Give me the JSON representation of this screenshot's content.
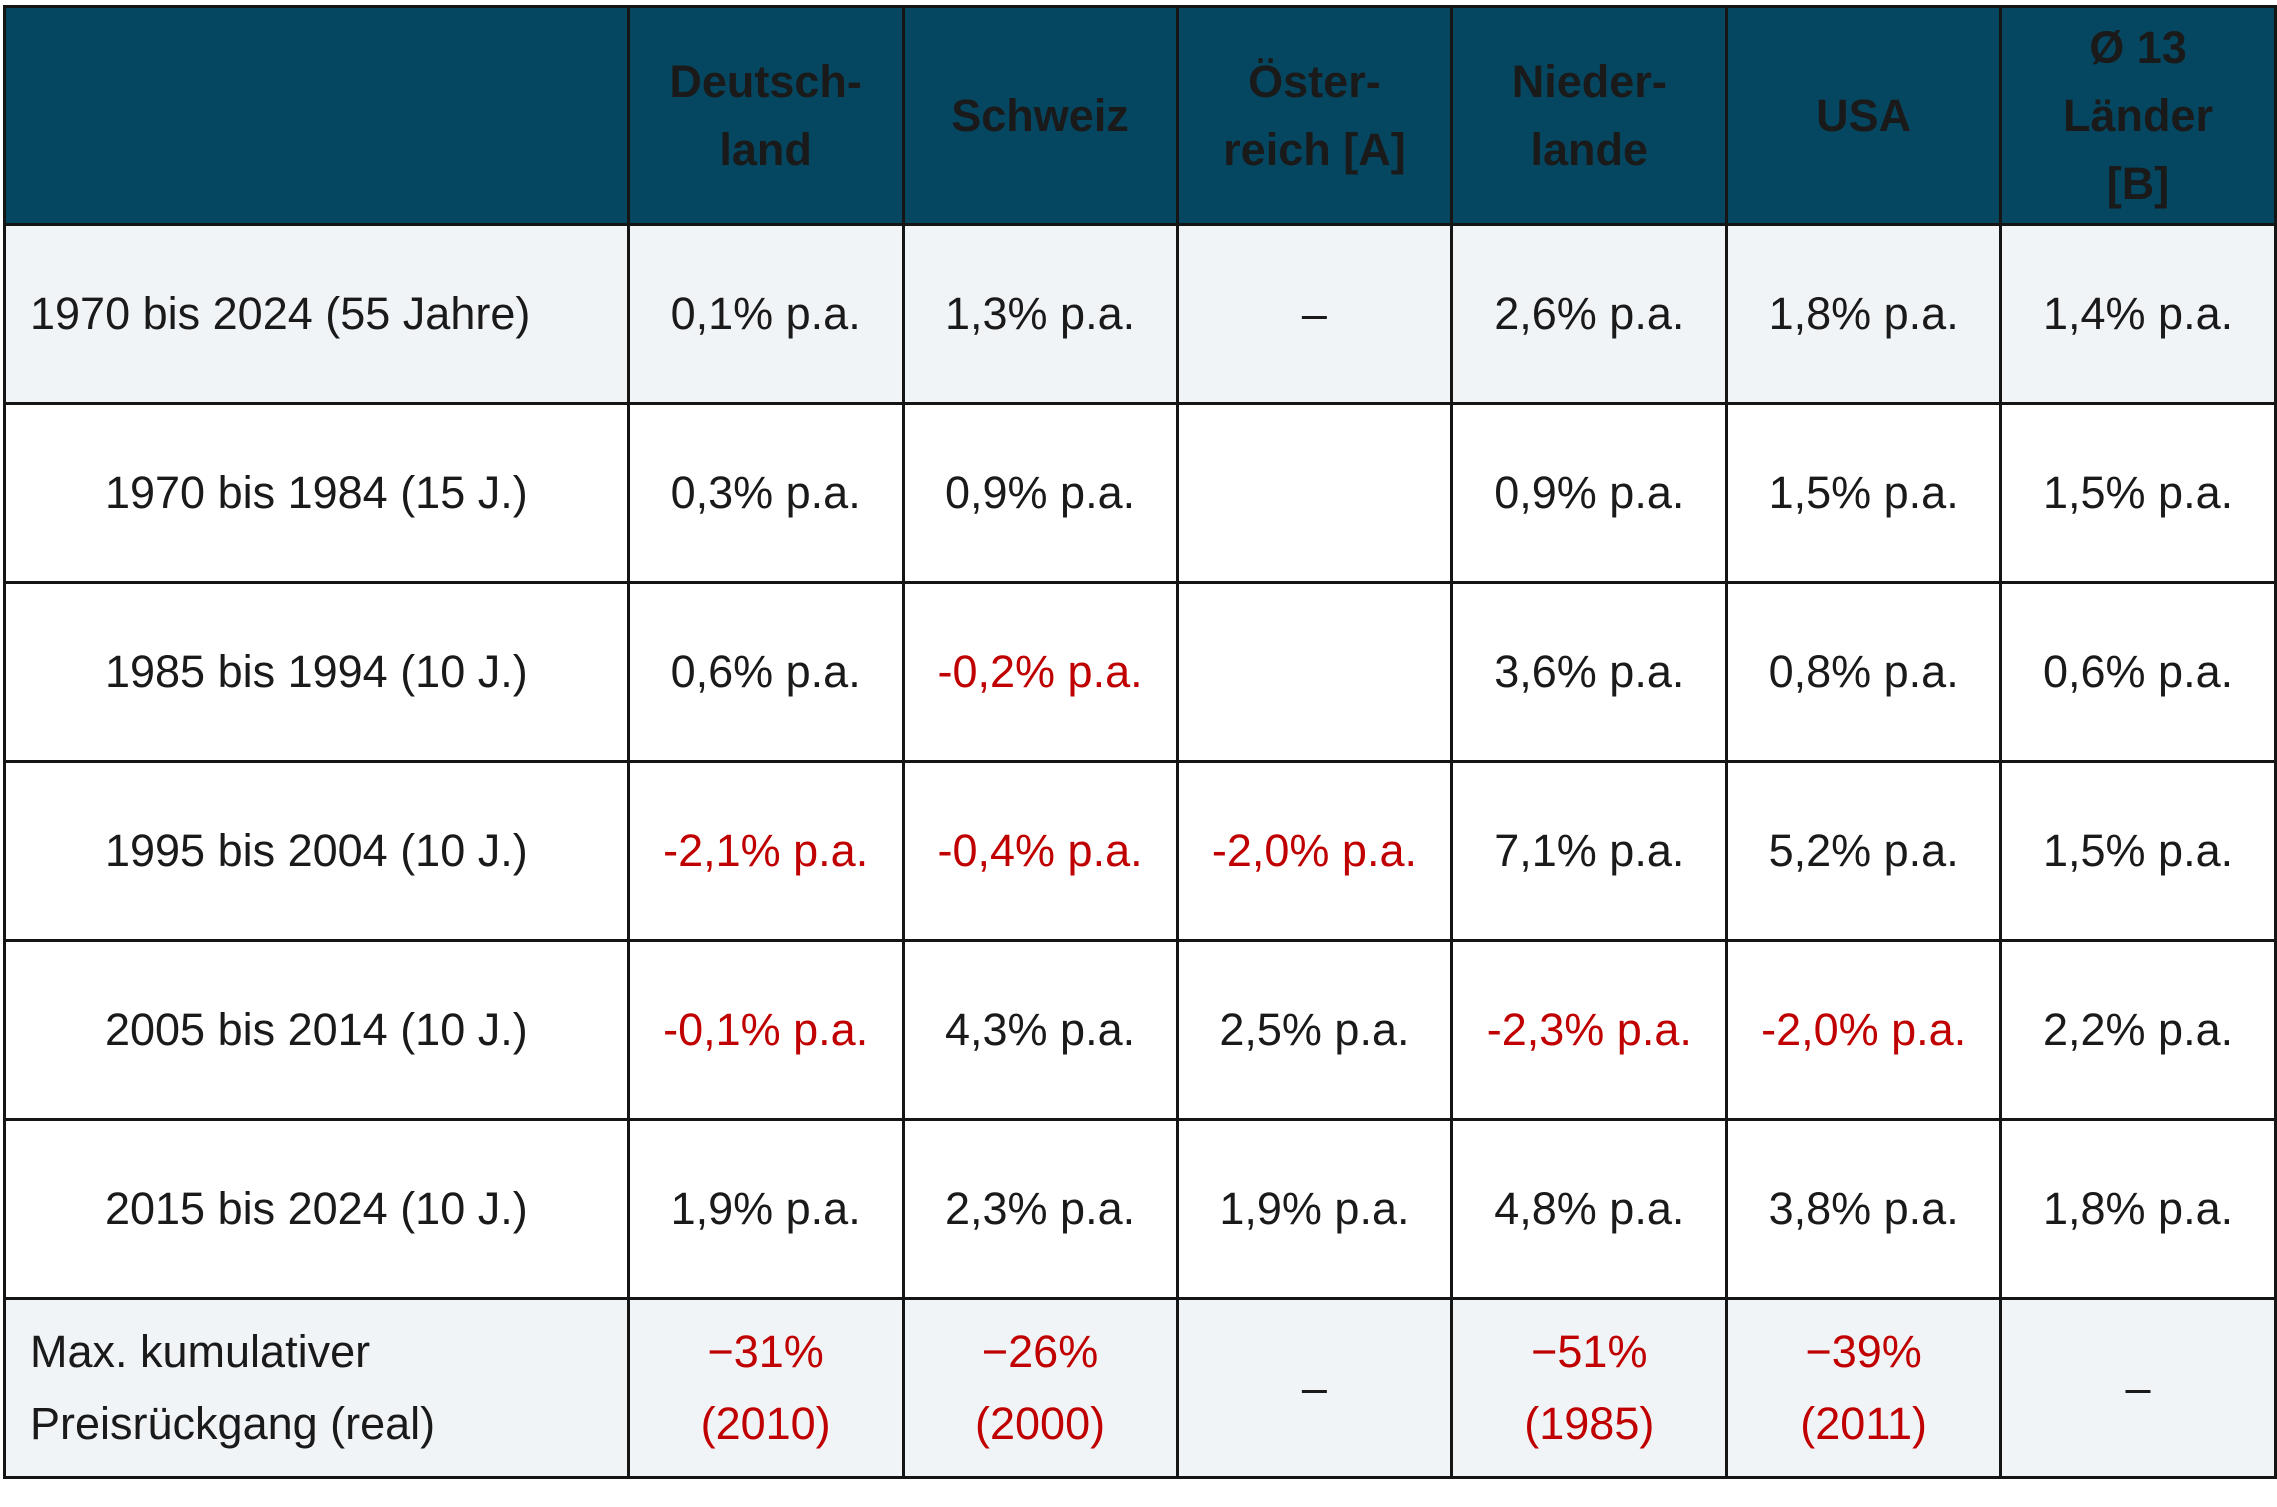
{
  "table": {
    "headers": [
      {
        "lines": []
      },
      {
        "lines": [
          "Deutsch-",
          "land"
        ]
      },
      {
        "lines": [
          "Schweiz"
        ]
      },
      {
        "lines": [
          "Öster-",
          "reich [A]"
        ]
      },
      {
        "lines": [
          "Nieder-",
          "lande"
        ]
      },
      {
        "lines": [
          "USA"
        ]
      },
      {
        "lines": [
          "Ø 13",
          "Länder",
          "[B]"
        ]
      }
    ],
    "rows": [
      {
        "label": [
          "1970 bis 2024 (55 Jahre)"
        ],
        "align": "left",
        "shaded": true,
        "cells": [
          {
            "text": [
              "0,1% p.a."
            ],
            "neg": false
          },
          {
            "text": [
              "1,3% p.a."
            ],
            "neg": false
          },
          {
            "text": [
              "–"
            ],
            "neg": false
          },
          {
            "text": [
              "2,6% p.a."
            ],
            "neg": false
          },
          {
            "text": [
              "1,8% p.a."
            ],
            "neg": false
          },
          {
            "text": [
              "1,4% p.a."
            ],
            "neg": false
          }
        ]
      },
      {
        "label": [
          "1970 bis 1984 (15 J.)"
        ],
        "align": "right",
        "shaded": false,
        "cells": [
          {
            "text": [
              "0,3% p.a."
            ],
            "neg": false
          },
          {
            "text": [
              "0,9% p.a."
            ],
            "neg": false
          },
          {
            "text": [
              ""
            ],
            "neg": false
          },
          {
            "text": [
              "0,9% p.a."
            ],
            "neg": false
          },
          {
            "text": [
              "1,5% p.a."
            ],
            "neg": false
          },
          {
            "text": [
              "1,5% p.a."
            ],
            "neg": false
          }
        ]
      },
      {
        "label": [
          "1985 bis 1994 (10 J.)"
        ],
        "align": "right",
        "shaded": false,
        "cells": [
          {
            "text": [
              "0,6% p.a."
            ],
            "neg": false
          },
          {
            "text": [
              "-0,2% p.a."
            ],
            "neg": true
          },
          {
            "text": [
              ""
            ],
            "neg": false
          },
          {
            "text": [
              "3,6% p.a."
            ],
            "neg": false
          },
          {
            "text": [
              "0,8% p.a."
            ],
            "neg": false
          },
          {
            "text": [
              "0,6% p.a."
            ],
            "neg": false
          }
        ]
      },
      {
        "label": [
          "1995 bis 2004 (10 J.)"
        ],
        "align": "right",
        "shaded": false,
        "cells": [
          {
            "text": [
              "-2,1% p.a."
            ],
            "neg": true
          },
          {
            "text": [
              "-0,4% p.a."
            ],
            "neg": true
          },
          {
            "text": [
              "-2,0% p.a."
            ],
            "neg": true
          },
          {
            "text": [
              "7,1% p.a."
            ],
            "neg": false
          },
          {
            "text": [
              "5,2% p.a."
            ],
            "neg": false
          },
          {
            "text": [
              "1,5% p.a."
            ],
            "neg": false
          }
        ]
      },
      {
        "label": [
          "2005 bis 2014 (10 J.)"
        ],
        "align": "right",
        "shaded": false,
        "cells": [
          {
            "text": [
              "-0,1% p.a."
            ],
            "neg": true
          },
          {
            "text": [
              "4,3% p.a."
            ],
            "neg": false
          },
          {
            "text": [
              "2,5% p.a."
            ],
            "neg": false
          },
          {
            "text": [
              "-2,3% p.a."
            ],
            "neg": true
          },
          {
            "text": [
              "-2,0% p.a."
            ],
            "neg": true
          },
          {
            "text": [
              "2,2% p.a."
            ],
            "neg": false
          }
        ]
      },
      {
        "label": [
          "2015 bis 2024 (10 J.)"
        ],
        "align": "right",
        "shaded": false,
        "cells": [
          {
            "text": [
              "1,9% p.a."
            ],
            "neg": false
          },
          {
            "text": [
              "2,3% p.a."
            ],
            "neg": false
          },
          {
            "text": [
              "1,9% p.a."
            ],
            "neg": false
          },
          {
            "text": [
              "4,8% p.a."
            ],
            "neg": false
          },
          {
            "text": [
              "3,8% p.a."
            ],
            "neg": false
          },
          {
            "text": [
              "1,8% p.a."
            ],
            "neg": false
          }
        ]
      },
      {
        "label": [
          "Max. kumulativer",
          "Preisrückgang (real)"
        ],
        "align": "left",
        "shaded": true,
        "cells": [
          {
            "text": [
              "−31%",
              "(2010)"
            ],
            "neg": true
          },
          {
            "text": [
              "−26%",
              "(2000)"
            ],
            "neg": true
          },
          {
            "text": [
              "–"
            ],
            "neg": false
          },
          {
            "text": [
              "−51%",
              "(1985)"
            ],
            "neg": true
          },
          {
            "text": [
              "−39%",
              "(2011)"
            ],
            "neg": true
          },
          {
            "text": [
              "–"
            ],
            "neg": false
          }
        ]
      }
    ]
  }
}
